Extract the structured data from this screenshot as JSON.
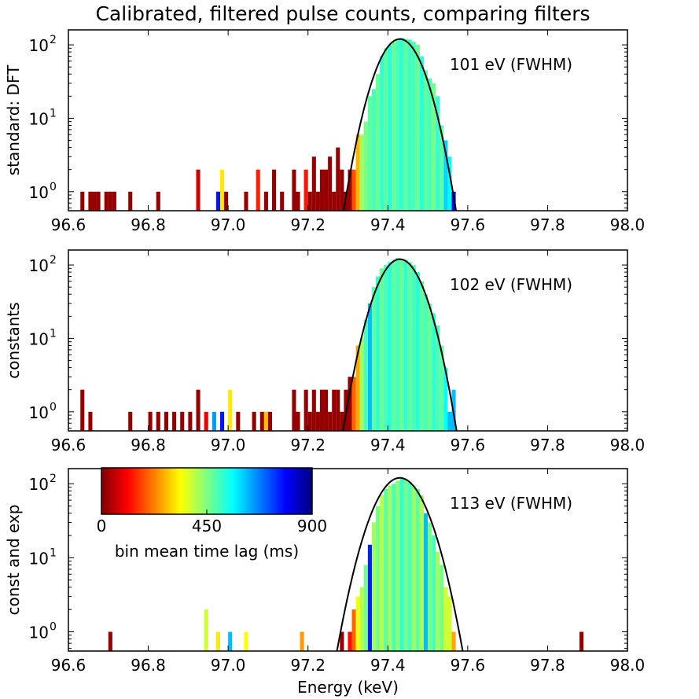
{
  "figure_title": "Calibrated, filtered pulse counts, comparing filters",
  "chart_data": [
    {
      "type": "bar",
      "scale": "log",
      "ylabel": "standard: DFT",
      "xlabel": "",
      "xlim": [
        96.6,
        98.0
      ],
      "ylim": [
        0.55,
        160
      ],
      "xticks": [
        96.6,
        96.8,
        97.0,
        97.2,
        97.4,
        97.6,
        97.8,
        98.0
      ],
      "xtick_labels": [
        "96.6",
        "96.8",
        "97.0",
        "97.2",
        "97.4",
        "97.6",
        "97.8",
        "98.0"
      ],
      "yticks": [
        1,
        10,
        100
      ],
      "ytick_base": "10",
      "ytick_exponents": [
        "0",
        "1",
        "2"
      ],
      "annotation": "101 eV (FWHM)",
      "fit": {
        "center": 97.43,
        "peak": 120,
        "fwhm_keV": 0.101
      },
      "bin_width_keV": 0.01,
      "bins": [
        {
          "x": 96.63,
          "count": 1,
          "lag": 20
        },
        {
          "x": 96.65,
          "count": 1,
          "lag": 20
        },
        {
          "x": 96.66,
          "count": 1,
          "lag": 20
        },
        {
          "x": 96.67,
          "count": 1,
          "lag": 20
        },
        {
          "x": 96.69,
          "count": 1,
          "lag": 20
        },
        {
          "x": 96.7,
          "count": 1,
          "lag": 20
        },
        {
          "x": 96.71,
          "count": 1,
          "lag": 20
        },
        {
          "x": 96.75,
          "count": 1,
          "lag": 20
        },
        {
          "x": 96.82,
          "count": 1,
          "lag": 20
        },
        {
          "x": 96.92,
          "count": 2,
          "lag": 70
        },
        {
          "x": 96.97,
          "count": 1,
          "lag": 770
        },
        {
          "x": 96.98,
          "count": 2,
          "lag": 320
        },
        {
          "x": 96.99,
          "count": 1,
          "lag": 20
        },
        {
          "x": 97.04,
          "count": 1,
          "lag": 20
        },
        {
          "x": 97.07,
          "count": 2,
          "lag": 140
        },
        {
          "x": 97.09,
          "count": 1,
          "lag": 20
        },
        {
          "x": 97.11,
          "count": 2,
          "lag": 20
        },
        {
          "x": 97.13,
          "count": 1,
          "lag": 20
        },
        {
          "x": 97.16,
          "count": 2,
          "lag": 20
        },
        {
          "x": 97.17,
          "count": 1,
          "lag": 20
        },
        {
          "x": 97.19,
          "count": 2,
          "lag": 130
        },
        {
          "x": 97.2,
          "count": 1,
          "lag": 20
        },
        {
          "x": 97.21,
          "count": 3,
          "lag": 20
        },
        {
          "x": 97.22,
          "count": 1,
          "lag": 20
        },
        {
          "x": 97.23,
          "count": 2,
          "lag": 20
        },
        {
          "x": 97.24,
          "count": 2,
          "lag": 20
        },
        {
          "x": 97.25,
          "count": 3,
          "lag": 20
        },
        {
          "x": 97.26,
          "count": 1,
          "lag": 20
        },
        {
          "x": 97.27,
          "count": 4,
          "lag": 20
        },
        {
          "x": 97.28,
          "count": 2,
          "lag": 20
        },
        {
          "x": 97.29,
          "count": 1,
          "lag": 20
        },
        {
          "x": 97.3,
          "count": 2,
          "lag": 20
        },
        {
          "x": 97.31,
          "count": 2,
          "lag": 180
        },
        {
          "x": 97.32,
          "count": 6,
          "lag": 270
        },
        {
          "x": 97.33,
          "count": 6,
          "lag": 420
        },
        {
          "x": 97.34,
          "count": 9,
          "lag": 460
        },
        {
          "x": 97.35,
          "count": 20,
          "lag": 480
        },
        {
          "x": 97.36,
          "count": 25,
          "lag": 500
        },
        {
          "x": 97.37,
          "count": 40,
          "lag": 470
        },
        {
          "x": 97.38,
          "count": 70,
          "lag": 520
        },
        {
          "x": 97.39,
          "count": 90,
          "lag": 480
        },
        {
          "x": 97.4,
          "count": 100,
          "lag": 530
        },
        {
          "x": 97.41,
          "count": 110,
          "lag": 470
        },
        {
          "x": 97.42,
          "count": 118,
          "lag": 500
        },
        {
          "x": 97.43,
          "count": 125,
          "lag": 520
        },
        {
          "x": 97.44,
          "count": 120,
          "lag": 480
        },
        {
          "x": 97.45,
          "count": 118,
          "lag": 510
        },
        {
          "x": 97.46,
          "count": 110,
          "lag": 500
        },
        {
          "x": 97.47,
          "count": 100,
          "lag": 470
        },
        {
          "x": 97.48,
          "count": 70,
          "lag": 530
        },
        {
          "x": 97.49,
          "count": 45,
          "lag": 480
        },
        {
          "x": 97.5,
          "count": 35,
          "lag": 500
        },
        {
          "x": 97.51,
          "count": 30,
          "lag": 460
        },
        {
          "x": 97.52,
          "count": 20,
          "lag": 520
        },
        {
          "x": 97.53,
          "count": 8,
          "lag": 480
        },
        {
          "x": 97.54,
          "count": 5,
          "lag": 600
        },
        {
          "x": 97.55,
          "count": 3,
          "lag": 560
        },
        {
          "x": 97.56,
          "count": 1,
          "lag": 780
        }
      ]
    },
    {
      "type": "bar",
      "scale": "log",
      "ylabel": "constants",
      "xlabel": "",
      "xlim": [
        96.6,
        98.0
      ],
      "ylim": [
        0.55,
        160
      ],
      "xticks": [
        96.6,
        96.8,
        97.0,
        97.2,
        97.4,
        97.6,
        97.8,
        98.0
      ],
      "xtick_labels": [
        "96.6",
        "96.8",
        "97.0",
        "97.2",
        "97.4",
        "97.6",
        "97.8",
        "98.0"
      ],
      "yticks": [
        1,
        10,
        100
      ],
      "ytick_base": "10",
      "ytick_exponents": [
        "0",
        "1",
        "2"
      ],
      "annotation": "102 eV (FWHM)",
      "fit": {
        "center": 97.43,
        "peak": 120,
        "fwhm_keV": 0.102
      },
      "bin_width_keV": 0.01,
      "bins": [
        {
          "x": 96.63,
          "count": 2,
          "lag": 20
        },
        {
          "x": 96.65,
          "count": 1,
          "lag": 20
        },
        {
          "x": 96.75,
          "count": 1,
          "lag": 20
        },
        {
          "x": 96.8,
          "count": 1,
          "lag": 20
        },
        {
          "x": 96.82,
          "count": 1,
          "lag": 20
        },
        {
          "x": 96.84,
          "count": 1,
          "lag": 20
        },
        {
          "x": 96.86,
          "count": 1,
          "lag": 20
        },
        {
          "x": 96.88,
          "count": 1,
          "lag": 20
        },
        {
          "x": 96.9,
          "count": 1,
          "lag": 20
        },
        {
          "x": 96.92,
          "count": 2,
          "lag": 20
        },
        {
          "x": 96.94,
          "count": 1,
          "lag": 100
        },
        {
          "x": 96.96,
          "count": 1,
          "lag": 650
        },
        {
          "x": 96.98,
          "count": 1,
          "lag": 770
        },
        {
          "x": 97.0,
          "count": 2,
          "lag": 320
        },
        {
          "x": 97.02,
          "count": 1,
          "lag": 20
        },
        {
          "x": 97.06,
          "count": 1,
          "lag": 20
        },
        {
          "x": 97.08,
          "count": 1,
          "lag": 20
        },
        {
          "x": 97.09,
          "count": 1,
          "lag": 280
        },
        {
          "x": 97.1,
          "count": 1,
          "lag": 20
        },
        {
          "x": 97.16,
          "count": 2,
          "lag": 20
        },
        {
          "x": 97.17,
          "count": 1,
          "lag": 20
        },
        {
          "x": 97.19,
          "count": 2,
          "lag": 20
        },
        {
          "x": 97.2,
          "count": 1,
          "lag": 20
        },
        {
          "x": 97.21,
          "count": 2,
          "lag": 20
        },
        {
          "x": 97.22,
          "count": 1,
          "lag": 20
        },
        {
          "x": 97.23,
          "count": 2,
          "lag": 20
        },
        {
          "x": 97.24,
          "count": 2,
          "lag": 20
        },
        {
          "x": 97.25,
          "count": 1,
          "lag": 20
        },
        {
          "x": 97.26,
          "count": 2,
          "lag": 20
        },
        {
          "x": 97.27,
          "count": 2,
          "lag": 20
        },
        {
          "x": 97.28,
          "count": 1,
          "lag": 20
        },
        {
          "x": 97.29,
          "count": 2,
          "lag": 20
        },
        {
          "x": 97.3,
          "count": 3,
          "lag": 20
        },
        {
          "x": 97.31,
          "count": 3,
          "lag": 200
        },
        {
          "x": 97.32,
          "count": 8,
          "lag": 260
        },
        {
          "x": 97.33,
          "count": 10,
          "lag": 420
        },
        {
          "x": 97.34,
          "count": 18,
          "lag": 500
        },
        {
          "x": 97.35,
          "count": 30,
          "lag": 620
        },
        {
          "x": 97.36,
          "count": 50,
          "lag": 480
        },
        {
          "x": 97.37,
          "count": 70,
          "lag": 520
        },
        {
          "x": 97.38,
          "count": 90,
          "lag": 470
        },
        {
          "x": 97.39,
          "count": 100,
          "lag": 500
        },
        {
          "x": 97.4,
          "count": 110,
          "lag": 530
        },
        {
          "x": 97.41,
          "count": 118,
          "lag": 480
        },
        {
          "x": 97.42,
          "count": 125,
          "lag": 500
        },
        {
          "x": 97.43,
          "count": 120,
          "lag": 470
        },
        {
          "x": 97.44,
          "count": 118,
          "lag": 520
        },
        {
          "x": 97.45,
          "count": 110,
          "lag": 480
        },
        {
          "x": 97.46,
          "count": 100,
          "lag": 500
        },
        {
          "x": 97.47,
          "count": 80,
          "lag": 530
        },
        {
          "x": 97.48,
          "count": 60,
          "lag": 480
        },
        {
          "x": 97.49,
          "count": 40,
          "lag": 500
        },
        {
          "x": 97.5,
          "count": 30,
          "lag": 470
        },
        {
          "x": 97.51,
          "count": 22,
          "lag": 520
        },
        {
          "x": 97.52,
          "count": 15,
          "lag": 500
        },
        {
          "x": 97.53,
          "count": 8,
          "lag": 480
        },
        {
          "x": 97.54,
          "count": 4,
          "lag": 560
        },
        {
          "x": 97.55,
          "count": 1,
          "lag": 620
        },
        {
          "x": 97.56,
          "count": 2,
          "lag": 620
        }
      ]
    },
    {
      "type": "bar",
      "scale": "log",
      "ylabel": "const and exp",
      "xlabel": "Energy (keV)",
      "xlim": [
        96.6,
        98.0
      ],
      "ylim": [
        0.55,
        160
      ],
      "xticks": [
        96.6,
        96.8,
        97.0,
        97.2,
        97.4,
        97.6,
        97.8,
        98.0
      ],
      "xtick_labels": [
        "96.6",
        "96.8",
        "97.0",
        "97.2",
        "97.4",
        "97.6",
        "97.8",
        "98.0"
      ],
      "yticks": [
        1,
        10,
        100
      ],
      "ytick_base": "10",
      "ytick_exponents": [
        "0",
        "1",
        "2"
      ],
      "annotation": "113 eV (FWHM)",
      "fit": {
        "center": 97.43,
        "peak": 120,
        "fwhm_keV": 0.113
      },
      "bin_width_keV": 0.01,
      "bins": [
        {
          "x": 96.7,
          "count": 1,
          "lag": 20
        },
        {
          "x": 96.94,
          "count": 2,
          "lag": 380
        },
        {
          "x": 96.97,
          "count": 1,
          "lag": 320
        },
        {
          "x": 97.0,
          "count": 1,
          "lag": 620
        },
        {
          "x": 97.04,
          "count": 1,
          "lag": 340
        },
        {
          "x": 97.18,
          "count": 1,
          "lag": 250
        },
        {
          "x": 97.28,
          "count": 1,
          "lag": 20
        },
        {
          "x": 97.3,
          "count": 1,
          "lag": 120
        },
        {
          "x": 97.31,
          "count": 2,
          "lag": 200
        },
        {
          "x": 97.32,
          "count": 3,
          "lag": 350
        },
        {
          "x": 97.33,
          "count": 4,
          "lag": 400
        },
        {
          "x": 97.34,
          "count": 8,
          "lag": 460
        },
        {
          "x": 97.35,
          "count": 15,
          "lag": 760
        },
        {
          "x": 97.36,
          "count": 30,
          "lag": 420
        },
        {
          "x": 97.37,
          "count": 50,
          "lag": 460
        },
        {
          "x": 97.38,
          "count": 70,
          "lag": 400
        },
        {
          "x": 97.39,
          "count": 85,
          "lag": 480
        },
        {
          "x": 97.4,
          "count": 95,
          "lag": 420
        },
        {
          "x": 97.41,
          "count": 100,
          "lag": 500
        },
        {
          "x": 97.42,
          "count": 110,
          "lag": 440
        },
        {
          "x": 97.43,
          "count": 120,
          "lag": 520
        },
        {
          "x": 97.44,
          "count": 115,
          "lag": 460
        },
        {
          "x": 97.45,
          "count": 105,
          "lag": 500
        },
        {
          "x": 97.46,
          "count": 95,
          "lag": 430
        },
        {
          "x": 97.47,
          "count": 85,
          "lag": 480
        },
        {
          "x": 97.48,
          "count": 70,
          "lag": 410
        },
        {
          "x": 97.49,
          "count": 40,
          "lag": 620
        },
        {
          "x": 97.5,
          "count": 30,
          "lag": 460
        },
        {
          "x": 97.51,
          "count": 20,
          "lag": 500
        },
        {
          "x": 97.52,
          "count": 12,
          "lag": 420
        },
        {
          "x": 97.53,
          "count": 8,
          "lag": 460
        },
        {
          "x": 97.54,
          "count": 4,
          "lag": 380
        },
        {
          "x": 97.55,
          "count": 3,
          "lag": 380
        },
        {
          "x": 97.56,
          "count": 1,
          "lag": 260
        },
        {
          "x": 97.88,
          "count": 1,
          "lag": 20
        }
      ]
    }
  ],
  "colorbar": {
    "label": "bin mean time lag (ms)",
    "min": 0,
    "max": 900,
    "tick_values": [
      0,
      450,
      900
    ],
    "tick_labels": [
      "0",
      "450",
      "900"
    ],
    "colormap": "jet",
    "jet_stops": [
      "#00007f",
      "#0000ff",
      "#007fff",
      "#00ffff",
      "#7fff7f",
      "#ffff00",
      "#ff7f00",
      "#ff0000",
      "#7f0000"
    ]
  },
  "colors": {
    "fit_line": "#000000",
    "axes": "#000000",
    "background": "#ffffff"
  }
}
